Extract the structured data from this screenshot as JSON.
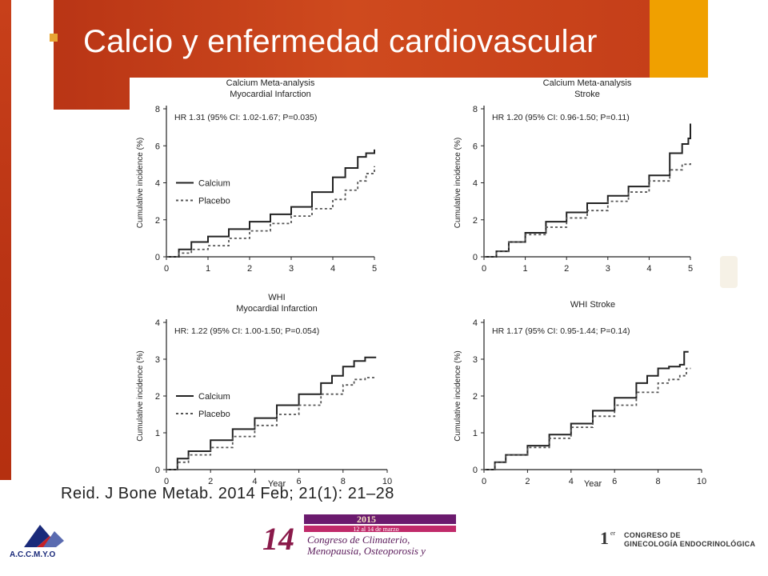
{
  "slide": {
    "title": "Calcio y enfermedad cardiovascular",
    "citation": "Reid. J Bone Metab. 2014 Feb; 21(1): 21–28",
    "colors": {
      "banner": "#c2401a",
      "accent": "#f0a000",
      "bullet": "#e8a533"
    }
  },
  "logos": {
    "accmyo": "A.C.C.M.Y.O",
    "congress_year": "2015",
    "congress_number": "14",
    "congress_dates": "12 al 14 de marzo",
    "congress_line1": "Congreso de Climaterio,",
    "congress_line2": "Menopausia, Osteoporosis y",
    "ginecologia_number": "1",
    "ginecologia_sup": "er",
    "ginecologia_line1": "CONGRESO DE",
    "ginecologia_line2": "GINECOLOGÍA ENDOCRINOLÓGICA"
  },
  "chart_data": [
    {
      "type": "line",
      "title": "Calcium Meta-analysis",
      "subtitle": "Myocardial Infarction",
      "annotation": "HR 1.31 (95% CI: 1.02-1.67; P=0.035)",
      "xlabel": "",
      "ylabel": "Cumulative incidence (%)",
      "xlim": [
        0,
        5
      ],
      "ylim": [
        0,
        8
      ],
      "xticks": [
        0,
        1,
        2,
        3,
        4,
        5
      ],
      "yticks": [
        0,
        2,
        4,
        6,
        8
      ],
      "legend": "left",
      "series": [
        {
          "name": "Calcium",
          "style": "solid",
          "x": [
            0,
            0.3,
            0.6,
            1.0,
            1.5,
            2.0,
            2.5,
            3.0,
            3.5,
            4.0,
            4.3,
            4.6,
            4.8,
            5.0
          ],
          "y": [
            0,
            0.4,
            0.8,
            1.1,
            1.5,
            1.9,
            2.3,
            2.7,
            3.5,
            4.3,
            4.8,
            5.4,
            5.6,
            5.8
          ]
        },
        {
          "name": "Placebo",
          "style": "dashed",
          "x": [
            0,
            0.3,
            0.6,
            1.0,
            1.5,
            2.0,
            2.5,
            3.0,
            3.5,
            4.0,
            4.3,
            4.6,
            4.8,
            5.0
          ],
          "y": [
            0,
            0.2,
            0.4,
            0.6,
            1.0,
            1.4,
            1.8,
            2.2,
            2.6,
            3.1,
            3.6,
            4.1,
            4.5,
            4.9
          ]
        }
      ]
    },
    {
      "type": "line",
      "title": "Calcium Meta-analysis",
      "subtitle": "Stroke",
      "annotation": "HR 1.20 (95% CI: 0.96-1.50; P=0.11)",
      "xlabel": "",
      "ylabel": "Cumulative incidence (%)",
      "xlim": [
        0,
        5
      ],
      "ylim": [
        0,
        8
      ],
      "xticks": [
        0,
        1,
        2,
        3,
        4,
        5
      ],
      "yticks": [
        0,
        2,
        4,
        6,
        8
      ],
      "legend": "none",
      "series": [
        {
          "name": "Calcium",
          "style": "solid",
          "x": [
            0,
            0.3,
            0.6,
            1.0,
            1.5,
            2.0,
            2.5,
            3.0,
            3.5,
            4.0,
            4.5,
            4.8,
            4.95,
            5.0
          ],
          "y": [
            0,
            0.3,
            0.8,
            1.3,
            1.9,
            2.4,
            2.9,
            3.3,
            3.8,
            4.4,
            5.6,
            6.1,
            6.4,
            7.2
          ]
        },
        {
          "name": "Placebo",
          "style": "dashed",
          "x": [
            0,
            0.3,
            0.6,
            1.0,
            1.5,
            2.0,
            2.5,
            3.0,
            3.5,
            4.0,
            4.5,
            4.8,
            5.0
          ],
          "y": [
            0,
            0.3,
            0.8,
            1.2,
            1.6,
            2.1,
            2.5,
            3.0,
            3.5,
            4.1,
            4.7,
            5.0,
            5.1
          ]
        }
      ]
    },
    {
      "type": "line",
      "title": "WHI",
      "subtitle": "Myocardial Infarction",
      "annotation": "HR: 1.22 (95% CI: 1.00-1.50; P=0.054)",
      "xlabel": "Year",
      "ylabel": "Cumulative incidence (%)",
      "xlim": [
        0,
        10
      ],
      "ylim": [
        0,
        4
      ],
      "xticks": [
        0,
        2,
        4,
        6,
        8,
        10
      ],
      "yticks": [
        0,
        1,
        2,
        3,
        4
      ],
      "legend": "left",
      "series": [
        {
          "name": "Calcium",
          "style": "solid",
          "x": [
            0,
            0.5,
            1,
            2,
            3,
            4,
            5,
            6,
            7,
            7.5,
            8,
            8.5,
            9,
            9.5
          ],
          "y": [
            0,
            0.3,
            0.5,
            0.8,
            1.1,
            1.4,
            1.75,
            2.05,
            2.35,
            2.55,
            2.8,
            2.95,
            3.05,
            3.05
          ]
        },
        {
          "name": "Placebo",
          "style": "dashed",
          "x": [
            0,
            0.5,
            1,
            2,
            3,
            4,
            5,
            6,
            7,
            8,
            8.5,
            9,
            9.5
          ],
          "y": [
            0,
            0.2,
            0.4,
            0.6,
            0.9,
            1.2,
            1.5,
            1.75,
            2.05,
            2.3,
            2.45,
            2.5,
            2.5
          ]
        }
      ]
    },
    {
      "type": "line",
      "title": "WHI Stroke",
      "subtitle": "",
      "annotation": "HR 1.17 (95% CI: 0.95-1.44; P=0.14)",
      "xlabel": "Year",
      "ylabel": "Cumulative incidence (%)",
      "xlim": [
        0,
        10
      ],
      "ylim": [
        0,
        4
      ],
      "xticks": [
        0,
        2,
        4,
        6,
        8,
        10
      ],
      "yticks": [
        0,
        1,
        2,
        3,
        4
      ],
      "legend": "none",
      "series": [
        {
          "name": "Calcium",
          "style": "solid",
          "x": [
            0,
            0.5,
            1,
            2,
            3,
            4,
            5,
            6,
            7,
            7.5,
            8,
            8.5,
            9,
            9.2,
            9.4
          ],
          "y": [
            0,
            0.2,
            0.4,
            0.65,
            0.95,
            1.25,
            1.6,
            1.95,
            2.35,
            2.55,
            2.75,
            2.8,
            2.85,
            3.2,
            3.2
          ]
        },
        {
          "name": "Placebo",
          "style": "dashed",
          "x": [
            0,
            0.5,
            1,
            2,
            3,
            4,
            5,
            6,
            7,
            8,
            8.5,
            9,
            9.3,
            9.5
          ],
          "y": [
            0,
            0.2,
            0.4,
            0.6,
            0.85,
            1.15,
            1.45,
            1.75,
            2.1,
            2.35,
            2.45,
            2.55,
            2.75,
            2.75
          ]
        }
      ]
    }
  ]
}
